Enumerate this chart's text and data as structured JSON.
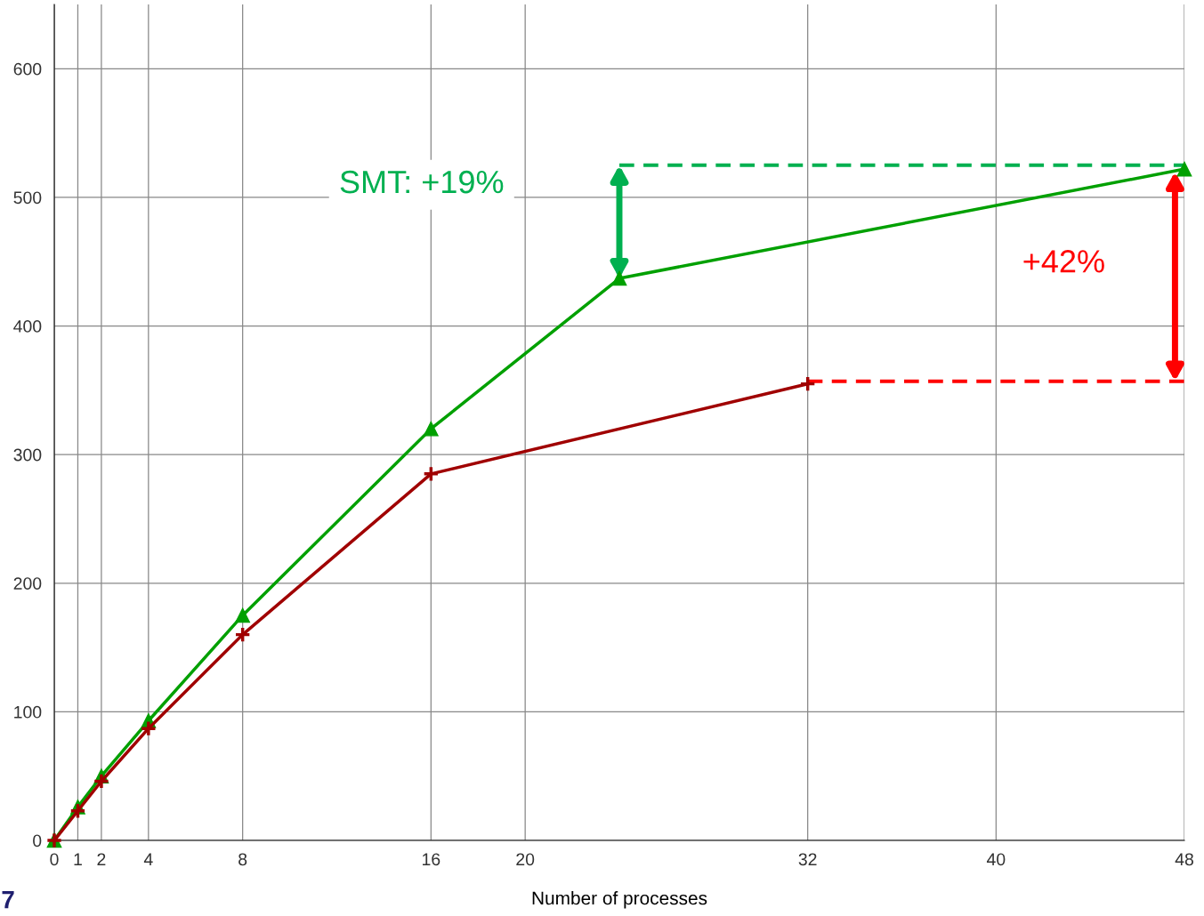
{
  "chart_data": {
    "type": "line",
    "xlabel": "Number of processes",
    "xlim": [
      0,
      48
    ],
    "xticks": [
      0,
      1,
      2,
      4,
      8,
      16,
      20,
      32,
      40,
      48
    ],
    "ylim": [
      0,
      650
    ],
    "yticks": [
      0,
      100,
      200,
      300,
      400,
      500,
      600
    ],
    "grid": true,
    "series": [
      {
        "color": "#a00000",
        "marker": "cross",
        "line_style": "solid",
        "x": [
          0,
          1,
          2,
          4,
          8,
          16,
          32
        ],
        "values": [
          0,
          23,
          46,
          87,
          160,
          285,
          355
        ]
      },
      {
        "color": "#00a000",
        "marker": "triangle",
        "line_style": "solid",
        "x": [
          0,
          1,
          2,
          4,
          8,
          16,
          24,
          48
        ],
        "values": [
          0,
          26,
          50,
          93,
          175,
          320,
          437,
          522
        ]
      },
      {
        "color": "#00b050",
        "marker": "none",
        "line_style": "dashed",
        "x": [
          24,
          48
        ],
        "values": [
          525,
          525
        ]
      },
      {
        "color": "#ff0000",
        "marker": "none",
        "line_style": "dashed",
        "x": [
          32,
          48
        ],
        "values": [
          357,
          357
        ]
      }
    ],
    "annotations": [
      "SMT: +19%",
      "+42%",
      "7"
    ]
  }
}
